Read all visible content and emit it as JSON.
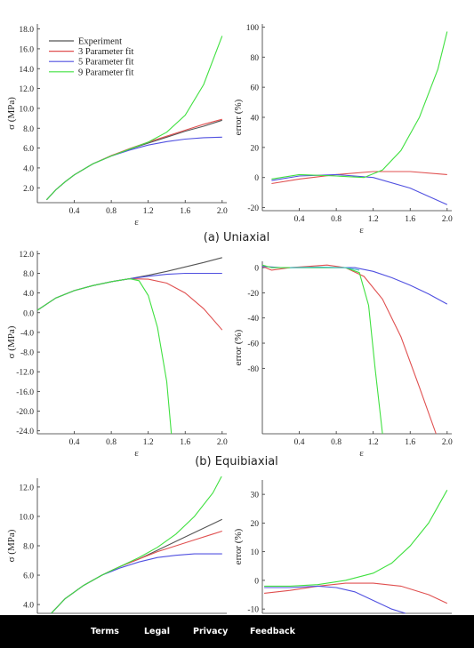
{
  "captions": [
    "(a) Uniaxial",
    "(b) Equibiaxial"
  ],
  "footer": {
    "links": [
      "Terms",
      "Legal",
      "Privacy",
      "Feedback"
    ]
  },
  "colors": {
    "experiment": "#555555",
    "p3": "#e05050",
    "p5": "#5050e0",
    "p9": "#40e040"
  },
  "chart_data": [
    {
      "type": "line",
      "id": "uniaxial-stress",
      "xlabel": "ε",
      "ylabel": "σ (MPa)",
      "xlim": [
        0,
        2.05
      ],
      "ylim": [
        0.5,
        18.5
      ],
      "xticks": [
        0.4,
        0.8,
        1.2,
        1.6,
        2.0
      ],
      "xtick_labels": [
        "0.4",
        "0.8",
        "1.2",
        "1.6",
        "2.0"
      ],
      "yticks": [
        2,
        4,
        6,
        8,
        10,
        12,
        14,
        16,
        18
      ],
      "ytick_labels": [
        "2.0",
        "4.0",
        "6.0",
        "8.0",
        "10.0",
        "12.0",
        "14.0",
        "16.0",
        "18.0"
      ],
      "legend": {
        "position": "top-left",
        "entries": [
          "Experiment",
          "3 Parameter fit",
          "5 Parameter fit",
          "9 Parameter fit"
        ]
      },
      "series": [
        {
          "name": "Experiment",
          "color": "#555555",
          "x": [
            0.1,
            0.2,
            0.3,
            0.4,
            0.6,
            0.8,
            1.0,
            1.2,
            1.4,
            1.6,
            1.8,
            2.0
          ],
          "y": [
            0.8,
            1.8,
            2.6,
            3.3,
            4.4,
            5.2,
            5.9,
            6.5,
            7.1,
            7.7,
            8.2,
            8.8
          ]
        },
        {
          "name": "3 Parameter fit",
          "color": "#e05050",
          "x": [
            0.1,
            0.2,
            0.3,
            0.4,
            0.6,
            0.8,
            1.0,
            1.2,
            1.4,
            1.6,
            1.8,
            2.0
          ],
          "y": [
            0.8,
            1.8,
            2.6,
            3.3,
            4.4,
            5.25,
            5.95,
            6.6,
            7.2,
            7.8,
            8.4,
            8.9
          ]
        },
        {
          "name": "5 Parameter fit",
          "color": "#5050e0",
          "x": [
            0.1,
            0.2,
            0.3,
            0.4,
            0.6,
            0.8,
            1.0,
            1.2,
            1.4,
            1.6,
            1.8,
            2.0
          ],
          "y": [
            0.8,
            1.8,
            2.6,
            3.3,
            4.4,
            5.2,
            5.8,
            6.3,
            6.65,
            6.9,
            7.05,
            7.1
          ]
        },
        {
          "name": "9 Parameter fit",
          "color": "#40e040",
          "x": [
            0.1,
            0.2,
            0.3,
            0.4,
            0.6,
            0.8,
            1.0,
            1.2,
            1.4,
            1.6,
            1.8,
            2.0
          ],
          "y": [
            0.8,
            1.8,
            2.6,
            3.3,
            4.4,
            5.2,
            5.9,
            6.6,
            7.6,
            9.3,
            12.4,
            17.3
          ]
        }
      ]
    },
    {
      "type": "line",
      "id": "uniaxial-error",
      "xlabel": "ε",
      "ylabel": "error (%)",
      "xlim": [
        0,
        2.05
      ],
      "ylim": [
        -22,
        102
      ],
      "xticks": [
        0.4,
        0.8,
        1.2,
        1.6,
        2.0
      ],
      "xtick_labels": [
        "0.4",
        "0.8",
        "1.2",
        "1.6",
        "2.0"
      ],
      "yticks": [
        -20,
        0,
        20,
        40,
        60,
        80,
        100
      ],
      "ytick_labels": [
        "-20",
        "0",
        "20",
        "40",
        "60",
        "80",
        "100"
      ],
      "series": [
        {
          "name": "",
          "color": "#e05050",
          "x": [
            0.1,
            0.4,
            0.8,
            1.2,
            1.6,
            2.0
          ],
          "y": [
            -4,
            -1,
            2,
            4,
            4,
            2
          ]
        },
        {
          "name": "",
          "color": "#5050e0",
          "x": [
            0.1,
            0.4,
            0.8,
            1.2,
            1.6,
            2.0
          ],
          "y": [
            -2,
            1,
            2,
            0,
            -7,
            -18
          ]
        },
        {
          "name": "",
          "color": "#40e040",
          "x": [
            0.1,
            0.4,
            0.8,
            1.1,
            1.3,
            1.5,
            1.7,
            1.9,
            2.0
          ],
          "y": [
            -1,
            2,
            1,
            0,
            5,
            18,
            40,
            72,
            97
          ]
        }
      ]
    },
    {
      "type": "line",
      "id": "equibiaxial-stress",
      "xlabel": "ε",
      "ylabel": "σ (MPa)",
      "xlim": [
        0,
        2.05
      ],
      "ylim": [
        -24.6,
        12.6
      ],
      "xticks": [
        0.4,
        0.8,
        1.2,
        1.6,
        2.0
      ],
      "xtick_labels": [
        "0.4",
        "0.8",
        "1.2",
        "1.6",
        "2.0"
      ],
      "yticks": [
        12,
        8,
        4,
        0,
        -4,
        -8,
        -12,
        -16,
        -20,
        -24
      ],
      "ytick_labels": [
        "12.0",
        "8.0",
        "4.0",
        "0.0",
        "-4.0",
        "-8.0",
        "-12.0",
        "-16.0",
        "-20.0",
        "-24.0"
      ],
      "series": [
        {
          "name": "Experiment",
          "color": "#555555",
          "x": [
            0,
            0.2,
            0.4,
            0.6,
            0.8,
            1.0,
            1.2,
            1.4,
            1.6,
            1.8,
            2.0
          ],
          "y": [
            0.5,
            3,
            4.5,
            5.5,
            6.3,
            6.9,
            7.6,
            8.4,
            9.3,
            10.2,
            11.2
          ]
        },
        {
          "name": "3 Parameter fit",
          "color": "#e05050",
          "x": [
            0,
            0.2,
            0.4,
            0.6,
            0.8,
            1.0,
            1.2,
            1.4,
            1.6,
            1.8,
            2.0
          ],
          "y": [
            0.5,
            3,
            4.5,
            5.5,
            6.3,
            6.9,
            6.8,
            6.0,
            4.0,
            0.8,
            -3.5
          ]
        },
        {
          "name": "5 Parameter fit",
          "color": "#5050e0",
          "x": [
            0,
            0.2,
            0.4,
            0.6,
            0.8,
            1.0,
            1.2,
            1.4,
            1.6,
            1.8,
            2.0
          ],
          "y": [
            0.5,
            3,
            4.5,
            5.5,
            6.3,
            6.9,
            7.4,
            7.8,
            8.0,
            8.0,
            8.0
          ]
        },
        {
          "name": "9 Parameter fit",
          "color": "#40e040",
          "x": [
            0,
            0.2,
            0.4,
            0.6,
            0.8,
            1.0,
            1.1,
            1.2,
            1.3,
            1.4,
            1.45
          ],
          "y": [
            0.5,
            3,
            4.5,
            5.5,
            6.3,
            6.9,
            6.5,
            3.5,
            -3,
            -14,
            -24.6
          ]
        }
      ]
    },
    {
      "type": "line",
      "id": "equibiaxial-error",
      "xlabel": "ε",
      "ylabel": "error (%)",
      "xlim": [
        0,
        2.05
      ],
      "ylim": [
        -132,
        5
      ],
      "xticks": [
        0.4,
        0.8,
        1.2,
        1.6,
        2.0
      ],
      "xtick_labels": [
        "0.4",
        "0.8",
        "1.2",
        "1.6",
        "2.0"
      ],
      "yticks": [
        0,
        -20,
        -40,
        -60,
        -80
      ],
      "ytick_labels": [
        "0",
        "-20",
        "-40",
        "-60",
        "-80"
      ],
      "series": [
        {
          "name": "",
          "color": "#e05050",
          "x": [
            0,
            0.1,
            0.3,
            0.5,
            0.7,
            0.9,
            1.1,
            1.3,
            1.5,
            1.7,
            1.88
          ],
          "y": [
            1,
            -2,
            0,
            1,
            2,
            0,
            -7,
            -25,
            -55,
            -95,
            -132
          ]
        },
        {
          "name": "",
          "color": "#5050e0",
          "x": [
            0,
            0.2,
            0.5,
            0.8,
            1.0,
            1.2,
            1.4,
            1.6,
            1.8,
            2.0
          ],
          "y": [
            1,
            0,
            0,
            0,
            0,
            -3,
            -8,
            -14,
            -21,
            -29
          ]
        },
        {
          "name": "",
          "color": "#40e040",
          "x": [
            0,
            0.1,
            0.3,
            0.6,
            0.9,
            1.05,
            1.15,
            1.22,
            1.3
          ],
          "y": [
            2,
            0,
            0,
            0,
            0,
            -4,
            -30,
            -80,
            -132
          ]
        },
        {
          "name": "",
          "color": "#40c0c0",
          "x": [
            0.3,
            0.6,
            0.9,
            1.05
          ],
          "y": [
            0,
            0.5,
            0,
            -2
          ]
        }
      ]
    },
    {
      "type": "line",
      "id": "third-stress",
      "xlabel": "",
      "ylabel": "σ (MPa)",
      "xlim": [
        0,
        2.05
      ],
      "ylim": [
        3.4,
        12.6
      ],
      "xticks": [],
      "xtick_labels": [],
      "yticks": [
        4,
        6,
        8,
        10,
        12
      ],
      "ytick_labels": [
        "4.0",
        "6.0",
        "8.0",
        "10.0",
        "12.0"
      ],
      "series": [
        {
          "name": "Experiment",
          "color": "#555555",
          "x": [
            0.15,
            0.3,
            0.5,
            0.7,
            0.9,
            1.1,
            1.3,
            1.5,
            1.7,
            1.9,
            2.0
          ],
          "y": [
            3.4,
            4.4,
            5.3,
            6.0,
            6.6,
            7.1,
            7.7,
            8.3,
            8.9,
            9.5,
            9.8
          ]
        },
        {
          "name": "3 Parameter fit",
          "color": "#e05050",
          "x": [
            0.15,
            0.3,
            0.5,
            0.7,
            0.9,
            1.1,
            1.3,
            1.5,
            1.7,
            1.9,
            2.0
          ],
          "y": [
            3.4,
            4.4,
            5.3,
            6.0,
            6.6,
            7.1,
            7.6,
            8.0,
            8.4,
            8.8,
            9.0
          ]
        },
        {
          "name": "5 Parameter fit",
          "color": "#5050e0",
          "x": [
            0.15,
            0.3,
            0.5,
            0.7,
            0.9,
            1.1,
            1.3,
            1.5,
            1.7,
            1.9,
            2.0
          ],
          "y": [
            3.4,
            4.4,
            5.3,
            6.0,
            6.5,
            6.9,
            7.2,
            7.35,
            7.45,
            7.45,
            7.45
          ]
        },
        {
          "name": "9 Parameter fit",
          "color": "#40e040",
          "x": [
            0.15,
            0.3,
            0.5,
            0.7,
            0.9,
            1.1,
            1.3,
            1.5,
            1.7,
            1.9,
            2.0
          ],
          "y": [
            3.4,
            4.4,
            5.3,
            6.0,
            6.6,
            7.2,
            7.9,
            8.8,
            10.0,
            11.6,
            12.8
          ]
        }
      ]
    },
    {
      "type": "line",
      "id": "third-error",
      "xlabel": "",
      "ylabel": "error (%)",
      "xlim": [
        0,
        2.05
      ],
      "ylim": [
        -11.5,
        35
      ],
      "xticks": [],
      "xtick_labels": [],
      "yticks": [
        30,
        20,
        10,
        0,
        -10
      ],
      "ytick_labels": [
        "30",
        "20",
        "10",
        "0",
        "-10"
      ],
      "series": [
        {
          "name": "",
          "color": "#e05050",
          "x": [
            0.02,
            0.3,
            0.6,
            0.9,
            1.2,
            1.5,
            1.8,
            2.0
          ],
          "y": [
            -4.5,
            -3.5,
            -2,
            -1,
            -1,
            -2,
            -5,
            -8
          ]
        },
        {
          "name": "",
          "color": "#5050e0",
          "x": [
            0.02,
            0.3,
            0.6,
            0.8,
            1.0,
            1.2,
            1.4,
            1.55
          ],
          "y": [
            -2.5,
            -2.5,
            -2,
            -2.5,
            -4,
            -7,
            -10,
            -11.5
          ]
        },
        {
          "name": "",
          "color": "#40e040",
          "x": [
            0.02,
            0.3,
            0.6,
            0.9,
            1.2,
            1.4,
            1.6,
            1.8,
            2.0
          ],
          "y": [
            -2,
            -2,
            -1.5,
            0,
            2.5,
            6,
            12,
            20,
            31.5
          ]
        }
      ]
    }
  ]
}
